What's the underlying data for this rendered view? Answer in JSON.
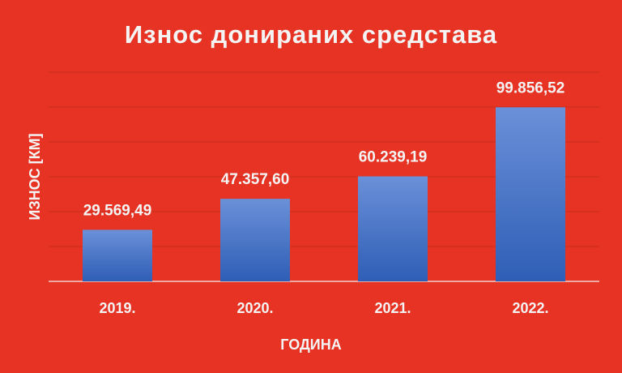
{
  "chart_data": {
    "type": "bar",
    "title": "Износ донираних средстава",
    "x_label": "ГОДИНА",
    "y_label": "ИЗНОС  [КМ]",
    "categories": [
      "2019.",
      "2020.",
      "2021.",
      "2022."
    ],
    "values": [
      29569.49,
      47357.6,
      60239.19,
      99856.52
    ],
    "value_labels": [
      "29.569,49",
      "47.357,60",
      "60.239,19",
      "99.856,52"
    ],
    "color": "#3f6fc6",
    "ylim": [
      0,
      120000
    ],
    "yticks": [
      0,
      20000,
      40000,
      60000,
      80000,
      100000,
      120000
    ],
    "grid": true
  }
}
